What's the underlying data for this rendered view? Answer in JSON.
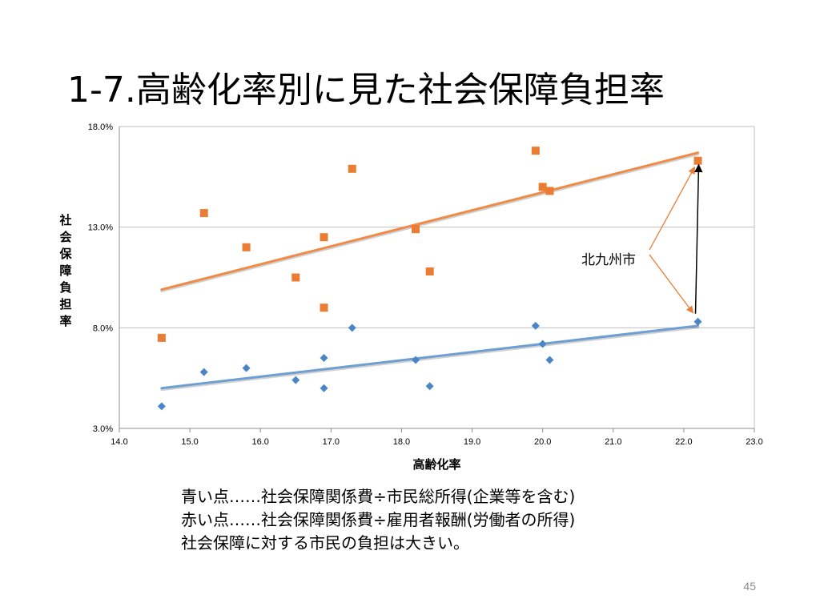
{
  "slide": {
    "title": "1-7.高齢化率別に見た社会保障負担率",
    "caption": [
      "青い点……社会保障関係費÷市民総所得(企業等を含む)",
      "赤い点……社会保障関係費÷雇用者報酬(労働者の所得)",
      "社会保障に対する市民の負担は大きい。"
    ],
    "page_number": "45"
  },
  "chart_data": {
    "type": "scatter",
    "title": "",
    "xlabel": "高齢化率",
    "ylabel": "社会保障負担率",
    "xlim": [
      14.0,
      23.0
    ],
    "ylim": [
      0.03,
      0.18
    ],
    "x_ticks": [
      14.0,
      15.0,
      16.0,
      17.0,
      18.0,
      19.0,
      20.0,
      21.0,
      22.0,
      23.0
    ],
    "x_tick_labels": [
      "14.0",
      "15.0",
      "16.0",
      "17.0",
      "18.0",
      "19.0",
      "20.0",
      "21.0",
      "22.0",
      "23.0"
    ],
    "y_ticks": [
      0.03,
      0.08,
      0.13,
      0.18
    ],
    "y_tick_labels": [
      "3.0%",
      "8.0%",
      "13.0%",
      "18.0%"
    ],
    "grid": true,
    "legend": "none",
    "series": [
      {
        "color": "#4a86c6",
        "trend_color": "#6d9fd2",
        "marker": "diamond",
        "points": [
          [
            14.6,
            0.041
          ],
          [
            15.2,
            0.058
          ],
          [
            15.8,
            0.06
          ],
          [
            16.5,
            0.054
          ],
          [
            16.9,
            0.065
          ],
          [
            16.9,
            0.05
          ],
          [
            17.3,
            0.08
          ],
          [
            18.2,
            0.064
          ],
          [
            18.4,
            0.051
          ],
          [
            19.9,
            0.081
          ],
          [
            20.0,
            0.072
          ],
          [
            20.1,
            0.064
          ],
          [
            22.2,
            0.083
          ]
        ],
        "trendline": [
          [
            14.6,
            0.05
          ],
          [
            22.2,
            0.081
          ]
        ]
      },
      {
        "color": "#ea7c34",
        "trend_color": "#ef8a47",
        "marker": "square",
        "points": [
          [
            14.6,
            0.075
          ],
          [
            15.2,
            0.137
          ],
          [
            15.8,
            0.12
          ],
          [
            16.5,
            0.105
          ],
          [
            16.9,
            0.125
          ],
          [
            16.9,
            0.09
          ],
          [
            17.3,
            0.159
          ],
          [
            18.2,
            0.129
          ],
          [
            18.4,
            0.108
          ],
          [
            19.9,
            0.168
          ],
          [
            20.0,
            0.15
          ],
          [
            20.1,
            0.148
          ],
          [
            22.2,
            0.163
          ]
        ],
        "trendline": [
          [
            14.6,
            0.099
          ],
          [
            22.2,
            0.167
          ]
        ]
      }
    ],
    "annotation": {
      "text": "北九州市",
      "target_x": 22.2,
      "target_ys": [
        0.163,
        0.083
      ],
      "arrow_color": "#ea7c34",
      "bracket_color": "#000000"
    }
  }
}
